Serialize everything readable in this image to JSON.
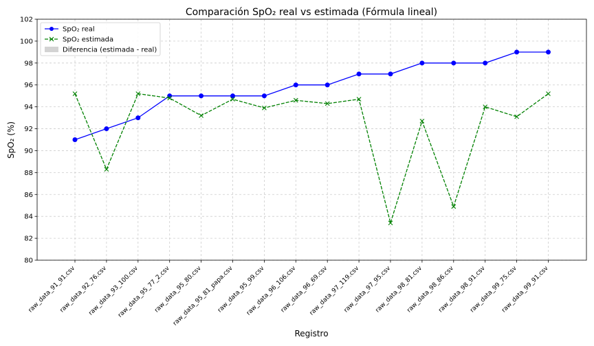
{
  "chart_data": {
    "type": "line",
    "title": "Comparación SpO₂ real vs estimada (Fórmula lineal)",
    "xlabel": "Registro",
    "ylabel": "SpO₂ (%)",
    "ylim": [
      80,
      102
    ],
    "yticks": [
      80,
      82,
      84,
      86,
      88,
      90,
      92,
      94,
      96,
      98,
      100,
      102
    ],
    "grid": true,
    "legend_position": "top-left",
    "categories": [
      "raw_data_91_91.csv",
      "raw_data_92_76.csv",
      "raw_data_93_100.csv",
      "raw_data_95_77_2.csv",
      "raw_data_95_80.csv",
      "raw_data_95_81_papa.csv",
      "raw_data_95_99.csv",
      "raw_data_96_106.csv",
      "raw_data_96_69.csv",
      "raw_data_97_119.csv",
      "raw_data_97_95.csv",
      "raw_data_98_81.csv",
      "raw_data_98_86.csv",
      "raw_data_98_91.csv",
      "raw_data_99_75.csv",
      "raw_data_99_91.csv"
    ],
    "series": [
      {
        "name": "SpO₂ real",
        "color": "#0000ff",
        "marker": "circle",
        "line_style": "solid",
        "values": [
          91,
          92,
          93,
          95,
          95,
          95,
          95,
          96,
          96,
          97,
          97,
          98,
          98,
          98,
          99,
          99
        ]
      },
      {
        "name": "SpO₂ estimada",
        "color": "#008000",
        "marker": "x",
        "line_style": "dashed",
        "values": [
          95.2,
          88.3,
          95.2,
          94.8,
          93.2,
          94.7,
          93.9,
          94.6,
          94.3,
          94.7,
          83.4,
          92.7,
          84.9,
          94.0,
          93.1,
          95.2
        ]
      }
    ],
    "legend": [
      {
        "label": "SpO₂ real",
        "color": "#0000ff",
        "kind": "line-circle"
      },
      {
        "label": "SpO₂ estimada",
        "color": "#008000",
        "kind": "dashed-x"
      },
      {
        "label": "Diferencia (estimada - real)",
        "color": "#d3d3d3",
        "kind": "patch"
      }
    ]
  }
}
